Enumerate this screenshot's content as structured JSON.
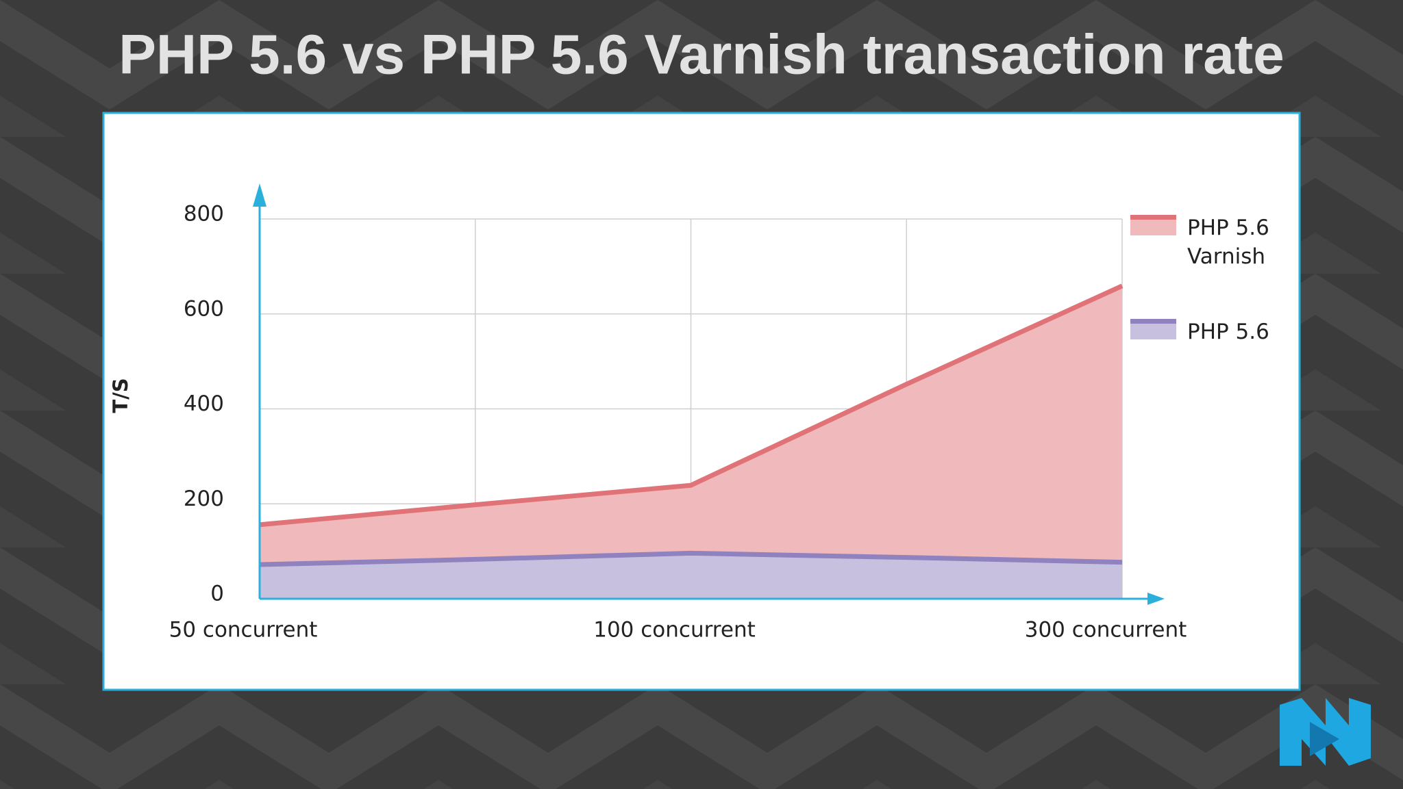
{
  "chart_data": {
    "type": "area",
    "title": "PHP 5.6 vs PHP 5.6 Varnish transaction rate",
    "y_label": "T/S",
    "categories": [
      "50 concurrent",
      null,
      "100 concurrent",
      null,
      "300 concurrent"
    ],
    "series": [
      {
        "name": "PHP 5.6 Varnish",
        "color": "#e07378",
        "values": [
          156,
          198,
          239,
          452,
          659
        ]
      },
      {
        "name": "PHP 5.6",
        "color": "#8f82bf",
        "values": [
          72,
          83,
          96,
          87,
          77
        ]
      }
    ],
    "ylim": [
      0,
      800
    ],
    "yticks": [
      0,
      200,
      400,
      600,
      800
    ],
    "grid": true,
    "legend": "right"
  }
}
